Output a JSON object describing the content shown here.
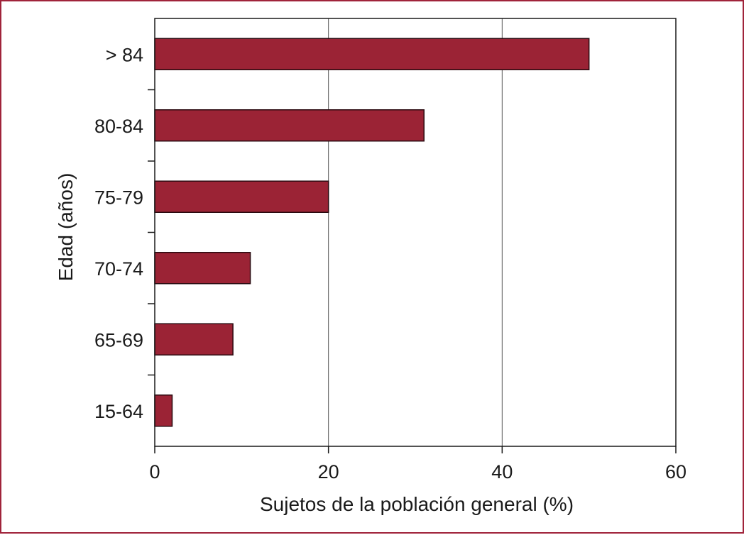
{
  "chart_data": {
    "type": "bar",
    "orientation": "horizontal",
    "categories": [
      "> 84",
      "80-84",
      "75-79",
      "70-74",
      "65-69",
      "15-64"
    ],
    "values": [
      50,
      31,
      20,
      11,
      9,
      2
    ],
    "title": "",
    "xlabel": "Sujetos de la población general (%)",
    "ylabel": "Edad (años)",
    "xlim": [
      0,
      60
    ],
    "xticks": [
      0,
      20,
      40,
      60
    ],
    "xtick_labels": [
      "0",
      "20",
      "40",
      "60"
    ],
    "grid": "vertical lines at 20 and 40",
    "legend": "none"
  },
  "colors": {
    "bar_fill": "#9b2335",
    "bar_stroke": "#2a0a10",
    "frame_border": "#a0233a",
    "axis": "#1a1a1a",
    "gridline": "#555555"
  }
}
